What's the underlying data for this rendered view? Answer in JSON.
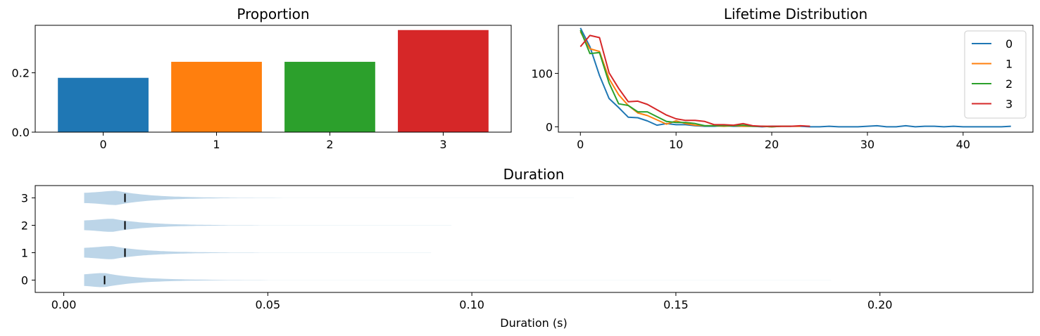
{
  "chart_data": [
    {
      "type": "bar",
      "title": "Proportion",
      "categories": [
        "0",
        "1",
        "2",
        "3"
      ],
      "values": [
        0.183,
        0.237,
        0.237,
        0.344
      ],
      "colors": [
        "#1f77b4",
        "#ff7f0e",
        "#2ca02c",
        "#d62728"
      ],
      "ylim": [
        0,
        0.36
      ],
      "yticks": [
        0.0,
        0.2
      ],
      "ytick_labels": [
        "0.0",
        "0.2"
      ],
      "grid": false
    },
    {
      "type": "line",
      "title": "Lifetime Distribution",
      "xlim": [
        -2.3,
        47.3
      ],
      "ylim": [
        -10,
        190
      ],
      "xticks": [
        0,
        10,
        20,
        30,
        40
      ],
      "xtick_labels": [
        "0",
        "10",
        "20",
        "30",
        "40"
      ],
      "yticks": [
        0,
        100
      ],
      "ytick_labels": [
        "0",
        "100"
      ],
      "legend_position": "top-right",
      "grid": false,
      "series": [
        {
          "name": "0",
          "color": "#1f77b4",
          "x": [
            0,
            1,
            2,
            3,
            4,
            5,
            6,
            7,
            8,
            9,
            10,
            11,
            12,
            13,
            14,
            15,
            16,
            17,
            18,
            19,
            20,
            21,
            22,
            23,
            24,
            25,
            26,
            27,
            28,
            29,
            30,
            31,
            32,
            33,
            34,
            35,
            36,
            37,
            38,
            39,
            40,
            41,
            42,
            43,
            44,
            45
          ],
          "y": [
            185,
            150,
            96,
            53,
            36,
            18,
            17,
            11,
            3,
            6,
            4,
            4,
            2,
            1,
            1,
            2,
            1,
            1,
            1,
            0,
            1,
            1,
            1,
            1,
            0,
            0,
            1,
            0,
            0,
            0,
            1,
            2,
            0,
            0,
            2,
            0,
            1,
            1,
            0,
            1,
            0,
            0,
            0,
            0,
            0,
            1
          ]
        },
        {
          "name": "1",
          "color": "#ff7f0e",
          "x": [
            0,
            1,
            2,
            3,
            4,
            5,
            6,
            7,
            8,
            9,
            10,
            11,
            12,
            13,
            14,
            15,
            16,
            17,
            18,
            19,
            20,
            21,
            22,
            23
          ],
          "y": [
            178,
            146,
            141,
            90,
            60,
            40,
            26,
            21,
            13,
            5,
            11,
            6,
            3,
            2,
            2,
            1,
            2,
            1,
            1,
            1,
            0,
            1,
            1,
            1
          ]
        },
        {
          "name": "2",
          "color": "#2ca02c",
          "x": [
            0,
            1,
            2,
            3,
            4,
            5,
            6,
            7,
            8,
            9,
            10,
            11,
            12,
            13,
            14,
            15,
            16,
            17,
            18,
            19,
            20,
            21,
            22
          ],
          "y": [
            181,
            137,
            139,
            82,
            43,
            40,
            28,
            28,
            19,
            10,
            8,
            8,
            6,
            2,
            2,
            2,
            2,
            3,
            1,
            1,
            0,
            1,
            1
          ]
        },
        {
          "name": "3",
          "color": "#d62728",
          "x": [
            0,
            1,
            2,
            3,
            4,
            5,
            6,
            7,
            8,
            9,
            10,
            11,
            12,
            13,
            14,
            15,
            16,
            17,
            18,
            19,
            20,
            21,
            22,
            23,
            24
          ],
          "y": [
            150,
            171,
            167,
            101,
            72,
            47,
            48,
            42,
            32,
            22,
            15,
            12,
            12,
            10,
            4,
            4,
            3,
            6,
            2,
            1,
            1,
            1,
            1,
            2,
            1
          ]
        }
      ]
    },
    {
      "type": "violin",
      "title": "Duration",
      "xlabel": "Duration (s)",
      "xlim": [
        -0.007,
        0.2375
      ],
      "ylim": [
        -0.45,
        3.45
      ],
      "xticks": [
        0.0,
        0.05,
        0.1,
        0.15,
        0.2
      ],
      "xtick_labels": [
        "0.00",
        "0.05",
        "0.10",
        "0.15",
        "0.20"
      ],
      "yticks": [
        0,
        1,
        2,
        3
      ],
      "ytick_labels": [
        "0",
        "1",
        "2",
        "3"
      ],
      "fill_color": "#bcd5e8",
      "grid": false,
      "violins": [
        {
          "category": "0",
          "min": 0.005,
          "max": 0.188,
          "median": 0.01,
          "mode": 0.01,
          "max_half_width": 0.26
        },
        {
          "category": "1",
          "min": 0.005,
          "max": 0.09,
          "median": 0.015,
          "mode": 0.012,
          "max_half_width": 0.24
        },
        {
          "category": "2",
          "min": 0.005,
          "max": 0.095,
          "median": 0.015,
          "mode": 0.012,
          "max_half_width": 0.24
        },
        {
          "category": "3",
          "min": 0.005,
          "max": 0.125,
          "median": 0.015,
          "mode": 0.013,
          "max_half_width": 0.26
        }
      ]
    }
  ]
}
